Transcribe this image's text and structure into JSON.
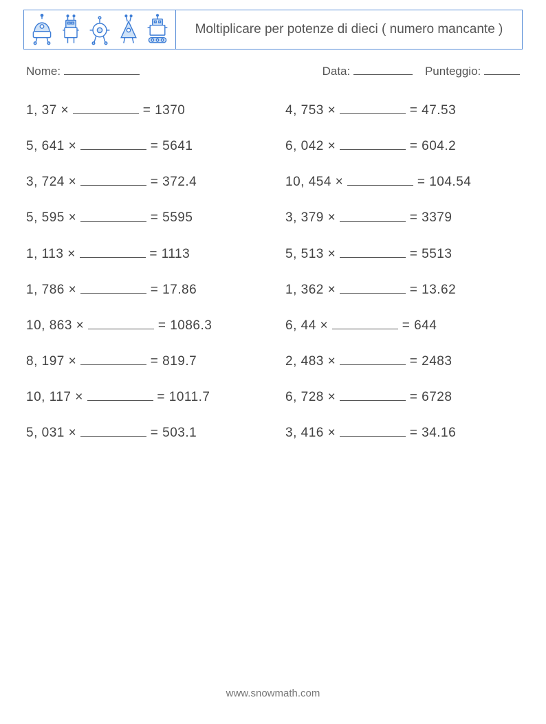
{
  "colors": {
    "icon_stroke": "#3d7dd6",
    "icon_fill_light": "#cfe2f7",
    "border": "#5a8fd8",
    "text": "#444444"
  },
  "header": {
    "title": "Moltiplicare per potenze di dieci ( numero mancante )"
  },
  "info": {
    "name_label": "Nome:",
    "date_label": "Data:",
    "score_label": "Punteggio:"
  },
  "footer": {
    "url": "www.snowmath.com"
  },
  "problems": {
    "left": [
      {
        "a": "1, 37",
        "b": "1370"
      },
      {
        "a": "5, 641",
        "b": "5641"
      },
      {
        "a": "3, 724",
        "b": "372.4"
      },
      {
        "a": "5, 595",
        "b": "5595"
      },
      {
        "a": "1, 113",
        "b": "1113"
      },
      {
        "a": "1, 786",
        "b": "17.86"
      },
      {
        "a": "10, 863",
        "b": "1086.3"
      },
      {
        "a": "8, 197",
        "b": "819.7"
      },
      {
        "a": "10, 117",
        "b": "1011.7"
      },
      {
        "a": "5, 031",
        "b": "503.1"
      }
    ],
    "right": [
      {
        "a": "4, 753",
        "b": "47.53"
      },
      {
        "a": "6, 042",
        "b": "604.2"
      },
      {
        "a": "10, 454",
        "b": "104.54"
      },
      {
        "a": "3, 379",
        "b": "3379"
      },
      {
        "a": "5, 513",
        "b": "5513"
      },
      {
        "a": "1, 362",
        "b": "13.62"
      },
      {
        "a": "6, 44",
        "b": "644"
      },
      {
        "a": "2, 483",
        "b": "2483"
      },
      {
        "a": "6, 728",
        "b": "6728"
      },
      {
        "a": "3, 416",
        "b": "34.16"
      }
    ]
  }
}
